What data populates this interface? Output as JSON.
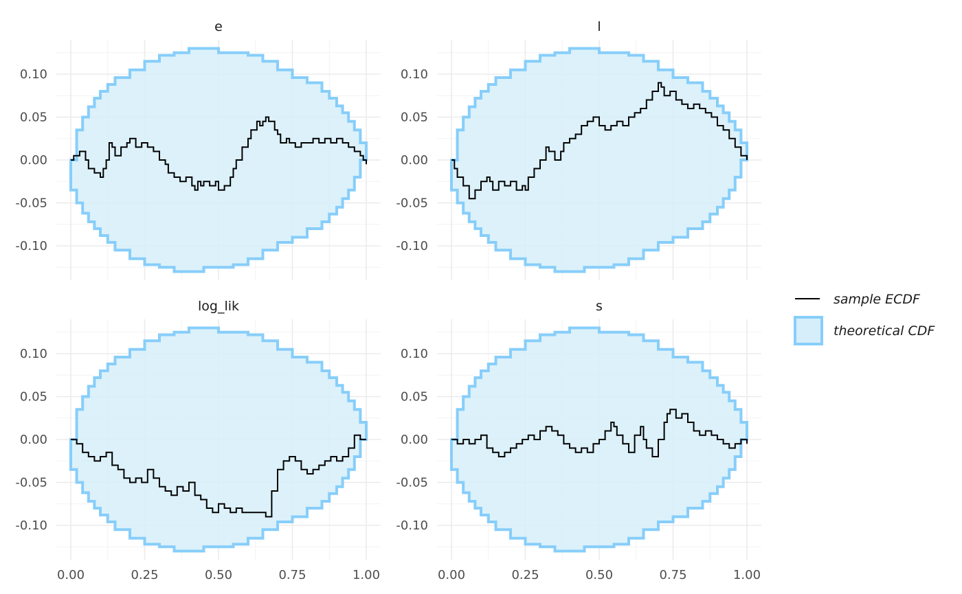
{
  "chart_data": {
    "type": "line",
    "layout": "facet-grid-2x2",
    "xlim": [
      0,
      1
    ],
    "ylim": [
      -0.14,
      0.14
    ],
    "x_ticks": [
      "0.00",
      "0.25",
      "0.50",
      "0.75",
      "1.00"
    ],
    "y_ticks": [
      "-0.10",
      "-0.05",
      "0.00",
      "0.05",
      "0.10"
    ],
    "grid": true,
    "legend_position": "right",
    "legend": {
      "line_label": "sample ECDF",
      "band_label": "theoretical CDF"
    },
    "colors": {
      "band_fill": "#d6eef9",
      "band_edge": "#87cefa",
      "line": "#000000",
      "grid_major": "#ebebeb",
      "grid_minor": "#f3f3f3"
    },
    "band": {
      "x": [
        0.0,
        0.02,
        0.04,
        0.06,
        0.08,
        0.1,
        0.125,
        0.15,
        0.2,
        0.25,
        0.3,
        0.35,
        0.4,
        0.45,
        0.5,
        0.55,
        0.6,
        0.65,
        0.7,
        0.75,
        0.8,
        0.85,
        0.875,
        0.9,
        0.92,
        0.94,
        0.96,
        0.98,
        1.0
      ],
      "upper": [
        0.0,
        0.035,
        0.05,
        0.062,
        0.072,
        0.08,
        0.088,
        0.096,
        0.105,
        0.115,
        0.122,
        0.125,
        0.13,
        0.13,
        0.125,
        0.125,
        0.122,
        0.115,
        0.105,
        0.096,
        0.09,
        0.08,
        0.072,
        0.063,
        0.055,
        0.045,
        0.035,
        0.02,
        0.0
      ]
    },
    "panels": [
      {
        "name": "e",
        "x": [
          0.0,
          0.01,
          0.03,
          0.05,
          0.06,
          0.08,
          0.1,
          0.11,
          0.12,
          0.13,
          0.14,
          0.15,
          0.17,
          0.19,
          0.2,
          0.22,
          0.24,
          0.26,
          0.28,
          0.3,
          0.32,
          0.33,
          0.35,
          0.37,
          0.39,
          0.41,
          0.42,
          0.43,
          0.44,
          0.45,
          0.47,
          0.49,
          0.5,
          0.52,
          0.54,
          0.55,
          0.56,
          0.58,
          0.6,
          0.61,
          0.63,
          0.64,
          0.65,
          0.66,
          0.67,
          0.69,
          0.7,
          0.71,
          0.73,
          0.74,
          0.76,
          0.78,
          0.8,
          0.82,
          0.84,
          0.86,
          0.88,
          0.9,
          0.92,
          0.94,
          0.96,
          0.98,
          0.99,
          1.0
        ],
        "y": [
          0.0,
          0.005,
          0.01,
          0.0,
          -0.01,
          -0.015,
          -0.02,
          -0.01,
          0.0,
          0.02,
          0.015,
          0.005,
          0.015,
          0.02,
          0.025,
          0.015,
          0.02,
          0.015,
          0.01,
          0.0,
          -0.005,
          -0.015,
          -0.02,
          -0.025,
          -0.02,
          -0.03,
          -0.035,
          -0.025,
          -0.03,
          -0.025,
          -0.03,
          -0.025,
          -0.035,
          -0.03,
          -0.02,
          -0.01,
          0.0,
          0.015,
          0.025,
          0.035,
          0.045,
          0.04,
          0.045,
          0.05,
          0.045,
          0.035,
          0.03,
          0.02,
          0.025,
          0.02,
          0.015,
          0.02,
          0.02,
          0.025,
          0.02,
          0.025,
          0.02,
          0.025,
          0.02,
          0.015,
          0.01,
          0.005,
          0.0,
          -0.005
        ]
      },
      {
        "name": "l",
        "x": [
          0.0,
          0.01,
          0.02,
          0.04,
          0.06,
          0.08,
          0.1,
          0.12,
          0.13,
          0.14,
          0.16,
          0.18,
          0.2,
          0.22,
          0.24,
          0.25,
          0.26,
          0.28,
          0.3,
          0.32,
          0.33,
          0.35,
          0.37,
          0.38,
          0.4,
          0.42,
          0.44,
          0.46,
          0.48,
          0.5,
          0.52,
          0.54,
          0.56,
          0.58,
          0.6,
          0.62,
          0.64,
          0.66,
          0.68,
          0.7,
          0.71,
          0.72,
          0.74,
          0.76,
          0.78,
          0.8,
          0.82,
          0.84,
          0.86,
          0.88,
          0.9,
          0.92,
          0.94,
          0.96,
          0.98,
          1.0
        ],
        "y": [
          0.0,
          -0.01,
          -0.02,
          -0.03,
          -0.045,
          -0.035,
          -0.025,
          -0.02,
          -0.025,
          -0.035,
          -0.025,
          -0.03,
          -0.025,
          -0.035,
          -0.03,
          -0.035,
          -0.02,
          -0.01,
          0.0,
          0.015,
          0.01,
          0.0,
          0.01,
          0.02,
          0.025,
          0.03,
          0.04,
          0.045,
          0.05,
          0.04,
          0.035,
          0.04,
          0.045,
          0.04,
          0.05,
          0.055,
          0.06,
          0.07,
          0.08,
          0.09,
          0.085,
          0.075,
          0.08,
          0.07,
          0.065,
          0.06,
          0.065,
          0.06,
          0.055,
          0.05,
          0.04,
          0.035,
          0.025,
          0.015,
          0.005,
          0.0
        ]
      },
      {
        "name": "log_lik",
        "x": [
          0.0,
          0.02,
          0.04,
          0.06,
          0.08,
          0.1,
          0.12,
          0.14,
          0.16,
          0.18,
          0.2,
          0.22,
          0.24,
          0.26,
          0.28,
          0.3,
          0.32,
          0.34,
          0.36,
          0.38,
          0.4,
          0.42,
          0.44,
          0.46,
          0.48,
          0.5,
          0.52,
          0.54,
          0.56,
          0.58,
          0.6,
          0.62,
          0.64,
          0.66,
          0.68,
          0.7,
          0.72,
          0.74,
          0.76,
          0.78,
          0.8,
          0.82,
          0.84,
          0.86,
          0.88,
          0.9,
          0.92,
          0.94,
          0.96,
          0.98,
          1.0
        ],
        "y": [
          0.0,
          -0.005,
          -0.015,
          -0.02,
          -0.025,
          -0.02,
          -0.015,
          -0.03,
          -0.035,
          -0.045,
          -0.05,
          -0.045,
          -0.05,
          -0.035,
          -0.045,
          -0.055,
          -0.06,
          -0.065,
          -0.055,
          -0.06,
          -0.05,
          -0.065,
          -0.07,
          -0.08,
          -0.085,
          -0.075,
          -0.08,
          -0.085,
          -0.08,
          -0.085,
          -0.085,
          -0.085,
          -0.085,
          -0.09,
          -0.06,
          -0.035,
          -0.025,
          -0.02,
          -0.025,
          -0.035,
          -0.04,
          -0.035,
          -0.03,
          -0.025,
          -0.02,
          -0.025,
          -0.02,
          -0.01,
          0.005,
          0.0,
          0.0
        ]
      },
      {
        "name": "s",
        "x": [
          0.0,
          0.02,
          0.04,
          0.06,
          0.08,
          0.1,
          0.12,
          0.14,
          0.16,
          0.18,
          0.2,
          0.22,
          0.24,
          0.26,
          0.28,
          0.3,
          0.32,
          0.34,
          0.36,
          0.38,
          0.4,
          0.42,
          0.44,
          0.46,
          0.48,
          0.5,
          0.52,
          0.54,
          0.55,
          0.56,
          0.58,
          0.6,
          0.62,
          0.64,
          0.65,
          0.66,
          0.68,
          0.7,
          0.72,
          0.73,
          0.74,
          0.76,
          0.78,
          0.8,
          0.82,
          0.84,
          0.86,
          0.88,
          0.9,
          0.92,
          0.94,
          0.96,
          0.98,
          1.0
        ],
        "y": [
          0.0,
          -0.005,
          0.0,
          -0.005,
          0.0,
          0.005,
          -0.01,
          -0.015,
          -0.02,
          -0.015,
          -0.01,
          -0.005,
          0.0,
          0.005,
          0.0,
          0.01,
          0.015,
          0.01,
          0.005,
          -0.005,
          -0.01,
          -0.015,
          -0.01,
          -0.015,
          -0.005,
          0.0,
          0.01,
          0.02,
          0.015,
          0.005,
          -0.005,
          -0.015,
          0.005,
          0.015,
          0.0,
          -0.01,
          -0.02,
          0.0,
          0.02,
          0.03,
          0.035,
          0.025,
          0.03,
          0.02,
          0.01,
          0.005,
          0.01,
          0.005,
          0.0,
          -0.005,
          -0.01,
          -0.005,
          0.0,
          -0.005
        ]
      }
    ]
  }
}
